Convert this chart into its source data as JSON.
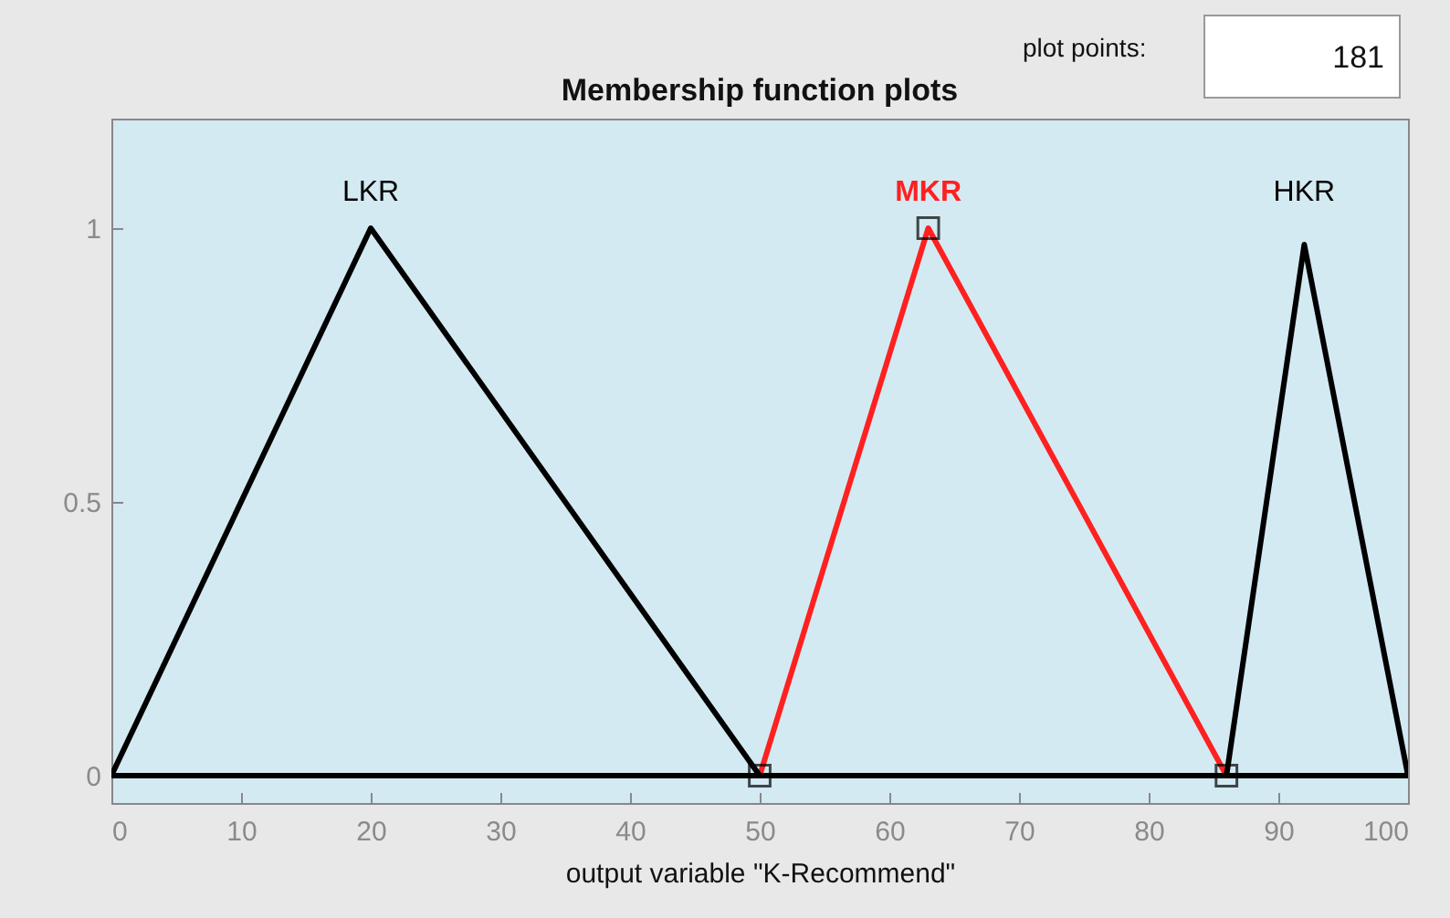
{
  "chart_data": {
    "type": "line",
    "title": "Membership function plots",
    "xlabel": "output variable \"K-Recommend\"",
    "annotations": [
      "plot points:",
      "181"
    ],
    "series": [
      {
        "name": "MKR",
        "color": "#ff2020",
        "x": [
          0,
          50,
          63,
          86,
          100
        ],
        "values": [
          0,
          0,
          1,
          0,
          0
        ]
      },
      {
        "name": "LKR",
        "color": "#000000",
        "x": [
          0,
          20,
          50,
          100
        ],
        "values": [
          0,
          1,
          0,
          0
        ]
      },
      {
        "name": "HKR",
        "color": "#000000",
        "x": [
          0,
          86,
          92,
          100
        ],
        "values": [
          0,
          0,
          0.97,
          0
        ]
      },
      {
        "type": "scatter",
        "marker": "square",
        "color": "#000000",
        "x": [
          50,
          63,
          86
        ],
        "values": [
          0,
          1,
          0
        ]
      }
    ],
    "xlim": [
      0,
      100
    ],
    "xticks": [
      0,
      10,
      20,
      30,
      40,
      50,
      60,
      70,
      80,
      90,
      100
    ],
    "ylim": [
      -0.05,
      1.2
    ],
    "yticks": [
      0,
      0.5,
      1
    ]
  }
}
